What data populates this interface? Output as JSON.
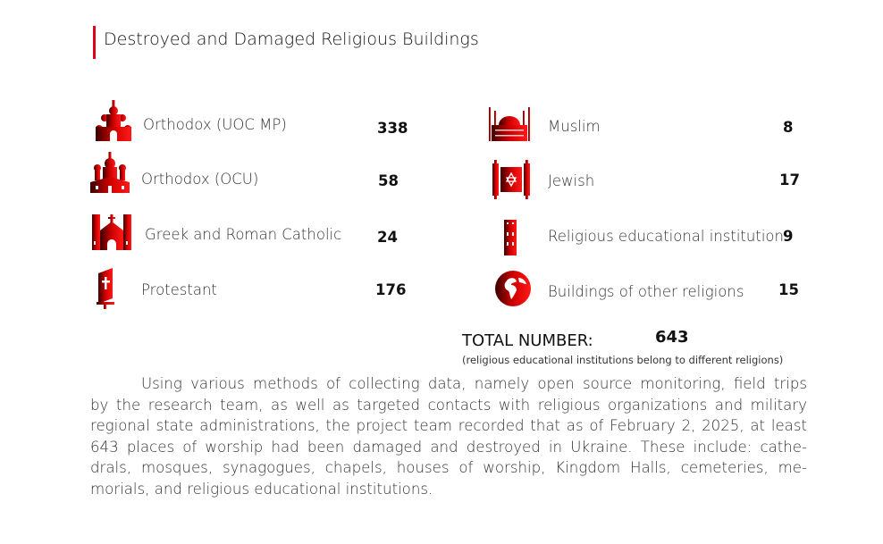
{
  "title": "Destroyed and Damaged Religious Buildings",
  "accent_color": "#e0001b",
  "left_items": [
    {
      "icon": "orthodox-church-icon",
      "label": "Orthodox (UOC MP)",
      "value": "338"
    },
    {
      "icon": "orthodox-cathedral-icon",
      "label": "Orthodox (OCU)",
      "value": "58"
    },
    {
      "icon": "catholic-church-icon",
      "label": "Greek and Roman Catholic",
      "value": "24"
    },
    {
      "icon": "bible-icon",
      "label": "Protestant",
      "value": "176"
    }
  ],
  "right_items": [
    {
      "icon": "mosque-icon",
      "label": "Muslim",
      "value": "8"
    },
    {
      "icon": "torah-scroll-icon",
      "label": "Jewish",
      "value": "17"
    },
    {
      "icon": "building-icon",
      "label": "Religious educational institution",
      "value": "9"
    },
    {
      "icon": "globe-icon",
      "label": "Buildings of other religions",
      "value": "15"
    }
  ],
  "total": {
    "label": "TOTAL NUMBER:",
    "value": "643",
    "note": "(religious educational institutions belong to different religions)"
  },
  "paragraph_lines": [
    "Using various methods of collecting data, namely open source monitoring, field trips",
    "by the research team, as well as targeted contacts with religious organizations and military",
    "regional state administrations, the project team recorded that as of February 2, 2025, at least",
    "643 places of worship had been damaged and destroyed in Ukraine. These include: cathe-",
    "drals, mosques, synagogues, chapels, houses of worship, Kingdom Halls, cemeteries, me-",
    "morials, and religious educational institutions."
  ]
}
